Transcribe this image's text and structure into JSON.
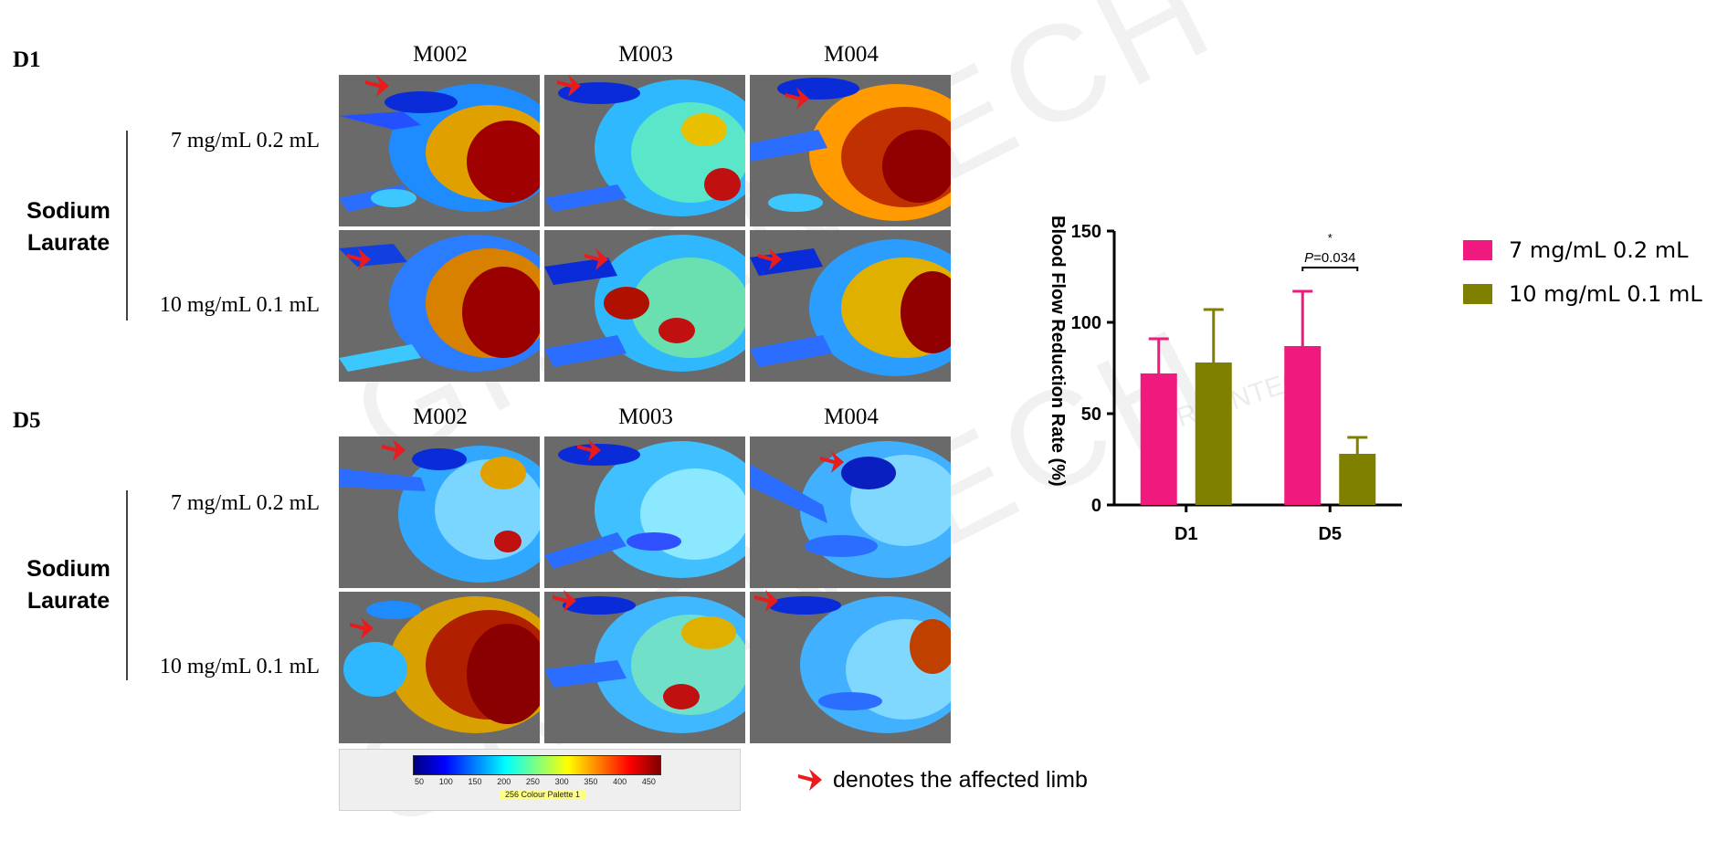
{
  "colors": {
    "series1": "#f0197d",
    "series2": "#808000",
    "arrow": "#e81c1c",
    "panel_bg": "#6a6a6a"
  },
  "figure": {
    "sections": [
      {
        "day": "D1",
        "columns": [
          "M002",
          "M003",
          "M004"
        ],
        "group": "Sodium Laurate",
        "rows": [
          "7 mg/mL 0.2 mL",
          "10 mg/mL 0.1 mL"
        ]
      },
      {
        "day": "D5",
        "columns": [
          "M002",
          "M003",
          "M004"
        ],
        "group": "Sodium Laurate",
        "rows": [
          "7 mg/mL 0.2 mL",
          "10 mg/mL 0.1 mL"
        ]
      }
    ],
    "watermark": "GREENTECH",
    "scale": {
      "ticks": [
        "50",
        "100",
        "150",
        "200",
        "250",
        "300",
        "350",
        "400",
        "450"
      ],
      "palette_name": "256 Colour Palette 1"
    },
    "arrow_note": "denotes the affected limb"
  },
  "chart_data": {
    "type": "bar",
    "title": "",
    "xlabel": "",
    "ylabel": "Blood Flow Reduction Rate (%)",
    "categories": [
      "D1",
      "D5"
    ],
    "ylim": [
      0,
      150
    ],
    "yticks": [
      0,
      50,
      100,
      150
    ],
    "series": [
      {
        "name": "7 mg/mL 0.2 mL",
        "values": [
          72,
          87
        ],
        "errors": [
          19,
          30
        ]
      },
      {
        "name": "10 mg/mL 0.1 mL",
        "values": [
          78,
          28
        ],
        "errors": [
          29,
          9
        ]
      }
    ],
    "annotations": [
      {
        "category": "D5",
        "text": "*",
        "p_label": "P",
        "p_value": "=0.034"
      }
    ],
    "watermark": "GREENTECH",
    "legend_position": "right"
  }
}
